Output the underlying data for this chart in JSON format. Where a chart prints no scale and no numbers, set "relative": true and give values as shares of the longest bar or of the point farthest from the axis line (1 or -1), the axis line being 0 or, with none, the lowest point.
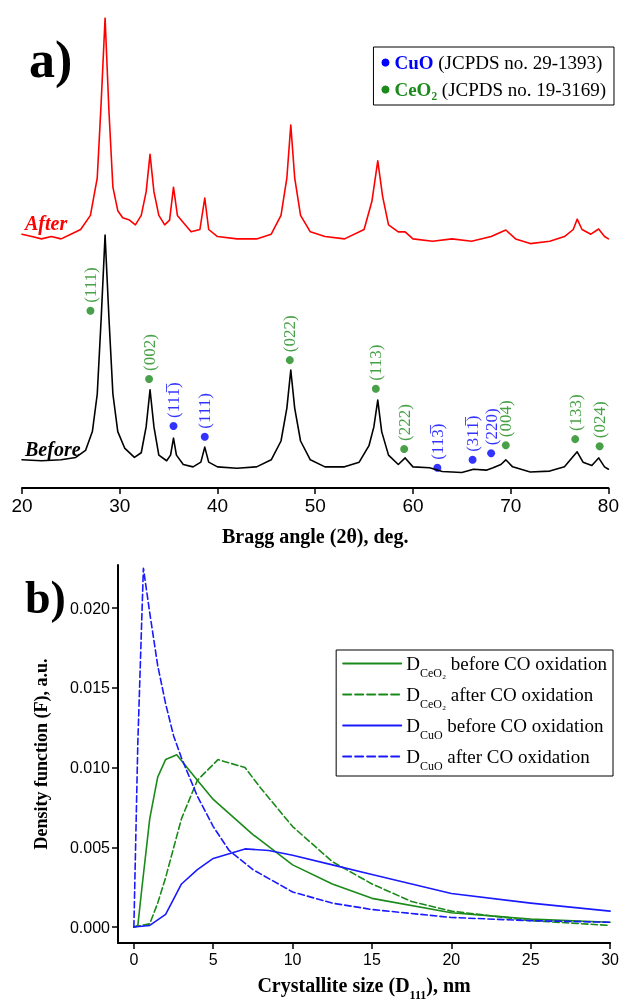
{
  "chart_data": [
    {
      "type": "line",
      "title": "a)",
      "xlabel": "Bragg angle (2θ), deg.",
      "xlim": [
        20,
        80
      ],
      "xticks": [
        20,
        30,
        40,
        50,
        60,
        70,
        80
      ],
      "relative": true,
      "tick_labels": "x",
      "legend": "top right",
      "series": [
        {
          "name": "After",
          "color": "#ff0000",
          "x": [
            20,
            21,
            22,
            23,
            24,
            25,
            26,
            27,
            27.7,
            28.1,
            28.5,
            28.9,
            29.3,
            29.8,
            30.3,
            31,
            31.6,
            32.2,
            32.7,
            33.1,
            33.5,
            34,
            34.6,
            35.1,
            35.5,
            35.9,
            36.5,
            37.3,
            38.2,
            38.7,
            39.1,
            40,
            42,
            44,
            45.5,
            46.5,
            47.1,
            47.5,
            47.9,
            48.5,
            49.5,
            51,
            53,
            55,
            55.8,
            56.4,
            56.9,
            57.5,
            58.5,
            59.2,
            60,
            62,
            64,
            66,
            68,
            69.5,
            70.5,
            72,
            74,
            75.5,
            76.4,
            76.8,
            77.3,
            78.2,
            79,
            79.6,
            80
          ],
          "values": [
            0.54,
            0.535,
            0.53,
            0.535,
            0.53,
            0.54,
            0.55,
            0.58,
            0.66,
            0.82,
            1.0,
            0.8,
            0.64,
            0.59,
            0.575,
            0.57,
            0.56,
            0.58,
            0.63,
            0.71,
            0.63,
            0.58,
            0.56,
            0.57,
            0.64,
            0.58,
            0.565,
            0.545,
            0.55,
            0.617,
            0.55,
            0.535,
            0.53,
            0.53,
            0.54,
            0.58,
            0.66,
            0.772,
            0.66,
            0.58,
            0.545,
            0.535,
            0.53,
            0.55,
            0.61,
            0.696,
            0.62,
            0.56,
            0.545,
            0.545,
            0.53,
            0.525,
            0.53,
            0.525,
            0.535,
            0.549,
            0.53,
            0.52,
            0.525,
            0.535,
            0.55,
            0.572,
            0.55,
            0.54,
            0.551,
            0.535,
            0.53
          ]
        },
        {
          "name": "Before",
          "color": "#000000",
          "x": [
            20,
            22,
            24,
            25.5,
            26.5,
            27.2,
            27.7,
            28.1,
            28.5,
            28.9,
            29.3,
            29.8,
            30.5,
            31.5,
            32.2,
            32.7,
            33.1,
            33.5,
            34,
            34.8,
            35.2,
            35.5,
            35.8,
            36.5,
            37.5,
            38.3,
            38.7,
            39.1,
            40,
            42,
            44,
            45.5,
            46.5,
            47.1,
            47.5,
            47.9,
            48.5,
            49.5,
            51,
            53,
            54.5,
            55.5,
            56,
            56.4,
            56.8,
            57.5,
            58.5,
            59.2,
            60,
            61.7,
            63,
            65,
            66.2,
            67.5,
            68.2,
            69,
            69.5,
            70.2,
            72,
            74,
            75.5,
            76.3,
            76.8,
            77.4,
            78.3,
            79,
            79.6,
            80
          ],
          "values": [
            0.06,
            0.058,
            0.06,
            0.065,
            0.08,
            0.12,
            0.2,
            0.36,
            0.538,
            0.36,
            0.2,
            0.12,
            0.085,
            0.065,
            0.075,
            0.13,
            0.209,
            0.13,
            0.07,
            0.058,
            0.07,
            0.106,
            0.07,
            0.05,
            0.045,
            0.055,
            0.087,
            0.055,
            0.045,
            0.042,
            0.045,
            0.06,
            0.1,
            0.17,
            0.251,
            0.17,
            0.1,
            0.06,
            0.045,
            0.045,
            0.055,
            0.09,
            0.13,
            0.187,
            0.12,
            0.07,
            0.05,
            0.064,
            0.045,
            0.043,
            0.035,
            0.033,
            0.04,
            0.038,
            0.043,
            0.05,
            0.06,
            0.045,
            0.034,
            0.036,
            0.045,
            0.065,
            0.077,
            0.055,
            0.048,
            0.064,
            0.045,
            0.04
          ]
        },
        {
          "type": "scatter",
          "marker": "circle",
          "name": "CuO (JCPDS no. 29-1393)",
          "color": "#0000ff",
          "x": [
            35.5,
            38.7,
            62.5,
            66.1,
            68.0
          ],
          "values": [
            0.132,
            0.109,
            0.043,
            0.06,
            0.074
          ]
        },
        {
          "type": "scatter",
          "marker": "circle",
          "name": "CeO₂ (JCPDS no. 19-3169)",
          "color": "#1a8a1a",
          "x": [
            27.0,
            33.0,
            47.4,
            56.2,
            59.1,
            69.5,
            76.6,
            79.1
          ],
          "values": [
            0.377,
            0.232,
            0.272,
            0.211,
            0.083,
            0.091,
            0.104,
            0.089
          ]
        }
      ],
      "annotations": [
        {
          "text": "(111̅)",
          "x": 35.5,
          "y": 0.132
        },
        {
          "text": "(111)",
          "x": 38.7,
          "y": 0.109
        },
        {
          "text": "(113̅)",
          "x": 62.5,
          "y": 0.043
        },
        {
          "text": "(311̅)",
          "x": 66.1,
          "y": 0.06
        },
        {
          "text": "(220)",
          "x": 68.0,
          "y": 0.074
        },
        {
          "text": "(111)",
          "x": 27.0,
          "y": 0.377
        },
        {
          "text": "(002)",
          "x": 33.0,
          "y": 0.232
        },
        {
          "text": "(022)",
          "x": 47.4,
          "y": 0.272
        },
        {
          "text": "(113)",
          "x": 56.2,
          "y": 0.211
        },
        {
          "text": "(222)",
          "x": 59.1,
          "y": 0.083
        },
        {
          "text": "(004)",
          "x": 69.5,
          "y": 0.091
        },
        {
          "text": "(133)",
          "x": 76.6,
          "y": 0.104
        },
        {
          "text": "(024)",
          "x": 79.1,
          "y": 0.089
        }
      ]
    },
    {
      "type": "line",
      "title": "b)",
      "xlabel": "Crystallite size (D$_{111}$), nm",
      "ylabel": "Density function (F), a.u.",
      "xlim": [
        -1,
        30
      ],
      "xticks": [
        0,
        5,
        10,
        15,
        20,
        25,
        30
      ],
      "ylim": [
        -0.001,
        0.0227
      ],
      "yticks": [
        {
          "value": 0,
          "label": "0.000"
        },
        {
          "value": 0.005,
          "label": "0.005"
        },
        {
          "value": 0.01,
          "label": "0.010"
        },
        {
          "value": 0.015,
          "label": "0.015"
        },
        {
          "value": 0.02,
          "label": "0.020"
        }
      ],
      "legend": "top right",
      "series": [
        {
          "name": "D$_{CeO₂}$ before CO oxidation",
          "color": "#1a8a1a",
          "line_style": "solid",
          "x": [
            0,
            0.25,
            0.5,
            1,
            1.5,
            2,
            2.7,
            4,
            5,
            7.5,
            10,
            12.5,
            15,
            20,
            25,
            30
          ],
          "values": [
            0,
            0.0001,
            0.0024,
            0.0068,
            0.0094,
            0.0105,
            0.0108,
            0.0092,
            0.008,
            0.0058,
            0.0039,
            0.0027,
            0.0018,
            0.0009,
            0.0005,
            0.0003
          ]
        },
        {
          "name": "D$_{CeO₂}$ after CO oxidation",
          "color": "#1a8a1a",
          "line_style": "dashed",
          "x": [
            0,
            1,
            1.5,
            2,
            3,
            4,
            5.3,
            7,
            8,
            10,
            12.5,
            15,
            17.5,
            20,
            25,
            30
          ],
          "values": [
            0,
            0.0002,
            0.0015,
            0.0031,
            0.0068,
            0.0092,
            0.0105,
            0.01,
            0.0087,
            0.0063,
            0.0041,
            0.0027,
            0.0016,
            0.001,
            0.0004,
            0.0001
          ]
        },
        {
          "name": "D$_{CuO}$ before CO oxidation",
          "color": "#1a1aff",
          "line_style": "solid",
          "x": [
            0,
            1,
            2,
            3,
            4,
            5,
            7,
            8.5,
            10,
            12.5,
            15,
            20,
            25,
            30
          ],
          "values": [
            0,
            0.0001,
            0.0008,
            0.0027,
            0.0036,
            0.0043,
            0.0049,
            0.0048,
            0.0045,
            0.0039,
            0.0033,
            0.0021,
            0.0015,
            0.001
          ]
        },
        {
          "name": "D$_{CuO}$ after CO oxidation",
          "color": "#1a1aff",
          "line_style": "dashed",
          "x": [
            0,
            0.25,
            0.6,
            1,
            1.5,
            2,
            2.5,
            3,
            4,
            5,
            6,
            7.5,
            10,
            12.5,
            15,
            20,
            25,
            30
          ],
          "values": [
            0,
            0.0116,
            0.0225,
            0.0197,
            0.0164,
            0.014,
            0.012,
            0.0106,
            0.0082,
            0.0063,
            0.0048,
            0.0036,
            0.0022,
            0.0015,
            0.0011,
            0.0006,
            0.0004,
            0.0003
          ]
        }
      ]
    }
  ]
}
